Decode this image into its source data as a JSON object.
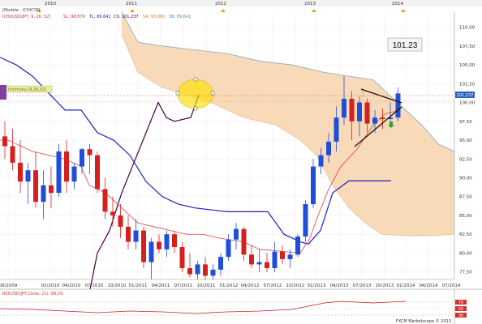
{
  "chart_title": "[Modèle : ICHICYP]",
  "indicator_legend": {
    "name": "ICHI(USD/JPY, 9, 26, 52)",
    "sl_label": "SL: 98,879",
    "tl_label": "TL: 89,641",
    "cs_label": "CS: 101,237",
    "sa_label": "SA: 93,860",
    "sb_label": "SB: 89,641"
  },
  "top_year_labels": [
    "2010",
    "2011",
    "2012",
    "2013",
    "2014"
  ],
  "price_box_value": "101.23",
  "current_price_tag": "101,237",
  "left_tag_label": "Ichimoku (9,26,52)",
  "rsi_legend": "RSI(USD/JPY,Close, 21): 68,29",
  "rsi_levels": [
    "70",
    "50",
    "30"
  ],
  "footer_brand": "FXCM Marketscope © 2013",
  "colors": {
    "up_candle": "#1f4fd6",
    "down_candle": "#d61f1f",
    "cloud": "#f8d9b8",
    "tenkan": "#e04040",
    "kijun": "#2020c0",
    "chikou": "#400040",
    "ellipse": "#ffe000",
    "senkou_b": "#7fb0c0"
  },
  "chart_data": {
    "type": "candlestick",
    "title": "[Modèle : ICHICYP]",
    "y_ticks": [
      "110,00",
      "107,50",
      "105,00",
      "102,50",
      "100,00",
      "97,50",
      "95,00",
      "92,50",
      "90,00",
      "87,50",
      "85,00",
      "82,50",
      "80,00",
      "77,50"
    ],
    "x_ticks": [
      "06/2009",
      "01/2010",
      "04/2010",
      "07/2010",
      "10/2010",
      "01/2011",
      "04/2011",
      "07/2011",
      "10/2011",
      "01/2012",
      "04/2012",
      "07/2012",
      "10/2012",
      "01/2013",
      "04/2013",
      "07/2013",
      "10/2013",
      "01/2014",
      "04/2014",
      "07/2014"
    ],
    "ylim": [
      76.5,
      112
    ],
    "candles": [
      {
        "o": 95.5,
        "h": 97.5,
        "l": 92.5,
        "c": 94.2
      },
      {
        "o": 94.2,
        "h": 96.5,
        "l": 91.0,
        "c": 92.0
      },
      {
        "o": 92.0,
        "h": 95.0,
        "l": 88.0,
        "c": 89.5
      },
      {
        "o": 89.5,
        "h": 92.0,
        "l": 86.5,
        "c": 91.0
      },
      {
        "o": 91.0,
        "h": 93.5,
        "l": 86.0,
        "c": 86.8
      },
      {
        "o": 86.8,
        "h": 91.0,
        "l": 84.5,
        "c": 89.0
      },
      {
        "o": 89.0,
        "h": 91.5,
        "l": 86.0,
        "c": 88.0
      },
      {
        "o": 88.0,
        "h": 94.5,
        "l": 87.5,
        "c": 93.5
      },
      {
        "o": 93.5,
        "h": 95.0,
        "l": 88.0,
        "c": 89.5
      },
      {
        "o": 89.5,
        "h": 92.0,
        "l": 88.5,
        "c": 91.5
      },
      {
        "o": 91.5,
        "h": 94.0,
        "l": 90.5,
        "c": 93.8
      },
      {
        "o": 93.8,
        "h": 94.5,
        "l": 90.5,
        "c": 93.0
      },
      {
        "o": 93.0,
        "h": 93.5,
        "l": 88.0,
        "c": 88.5
      },
      {
        "o": 88.5,
        "h": 90.0,
        "l": 84.5,
        "c": 85.5
      },
      {
        "o": 85.5,
        "h": 87.5,
        "l": 83.5,
        "c": 85.0
      },
      {
        "o": 85.0,
        "h": 86.5,
        "l": 82.0,
        "c": 83.5
      },
      {
        "o": 83.5,
        "h": 85.0,
        "l": 80.5,
        "c": 81.5
      },
      {
        "o": 81.5,
        "h": 84.5,
        "l": 80.5,
        "c": 83.0
      },
      {
        "o": 83.0,
        "h": 83.5,
        "l": 78.0,
        "c": 78.8
      },
      {
        "o": 78.8,
        "h": 82.0,
        "l": 76.5,
        "c": 81.5
      },
      {
        "o": 81.5,
        "h": 82.5,
        "l": 80.0,
        "c": 80.5
      },
      {
        "o": 80.5,
        "h": 83.0,
        "l": 79.5,
        "c": 82.5
      },
      {
        "o": 82.5,
        "h": 83.0,
        "l": 80.0,
        "c": 80.8
      },
      {
        "o": 80.8,
        "h": 81.5,
        "l": 77.5,
        "c": 78.0
      },
      {
        "o": 78.0,
        "h": 80.0,
        "l": 76.8,
        "c": 77.2
      },
      {
        "o": 77.2,
        "h": 79.0,
        "l": 76.5,
        "c": 78.5
      },
      {
        "o": 78.5,
        "h": 79.5,
        "l": 76.5,
        "c": 77.0
      },
      {
        "o": 77.0,
        "h": 78.5,
        "l": 76.5,
        "c": 77.8
      },
      {
        "o": 77.8,
        "h": 80.0,
        "l": 77.0,
        "c": 79.5
      },
      {
        "o": 79.5,
        "h": 82.5,
        "l": 79.0,
        "c": 81.8
      },
      {
        "o": 81.8,
        "h": 84.0,
        "l": 80.5,
        "c": 83.2
      },
      {
        "o": 83.2,
        "h": 83.5,
        "l": 79.0,
        "c": 79.8
      },
      {
        "o": 79.8,
        "h": 81.0,
        "l": 78.0,
        "c": 78.5
      },
      {
        "o": 78.5,
        "h": 80.5,
        "l": 77.5,
        "c": 78.8
      },
      {
        "o": 78.8,
        "h": 80.0,
        "l": 77.5,
        "c": 78.0
      },
      {
        "o": 78.0,
        "h": 81.5,
        "l": 77.5,
        "c": 80.2
      },
      {
        "o": 80.2,
        "h": 81.0,
        "l": 78.5,
        "c": 79.2
      },
      {
        "o": 79.2,
        "h": 80.5,
        "l": 78.0,
        "c": 79.8
      },
      {
        "o": 79.8,
        "h": 82.5,
        "l": 79.5,
        "c": 82.2
      },
      {
        "o": 82.2,
        "h": 87.0,
        "l": 81.5,
        "c": 86.5
      },
      {
        "o": 86.5,
        "h": 92.5,
        "l": 86.0,
        "c": 91.5
      },
      {
        "o": 91.5,
        "h": 94.0,
        "l": 90.5,
        "c": 93.0
      },
      {
        "o": 93.0,
        "h": 96.0,
        "l": 92.0,
        "c": 94.8
      },
      {
        "o": 94.8,
        "h": 99.5,
        "l": 93.5,
        "c": 98.0
      },
      {
        "o": 98.0,
        "h": 103.5,
        "l": 97.0,
        "c": 100.5
      },
      {
        "o": 100.5,
        "h": 101.5,
        "l": 95.0,
        "c": 97.5
      },
      {
        "o": 97.5,
        "h": 100.8,
        "l": 95.5,
        "c": 100.0
      },
      {
        "o": 100.0,
        "h": 100.5,
        "l": 96.0,
        "c": 97.2
      },
      {
        "o": 97.2,
        "h": 99.0,
        "l": 96.0,
        "c": 98.0
      },
      {
        "o": 98.0,
        "h": 99.2,
        "l": 96.5,
        "c": 97.8
      },
      {
        "o": 97.8,
        "h": 100.0,
        "l": 97.0,
        "c": 98.0
      },
      {
        "o": 98.0,
        "h": 102.0,
        "l": 97.5,
        "c": 101.2
      }
    ]
  }
}
